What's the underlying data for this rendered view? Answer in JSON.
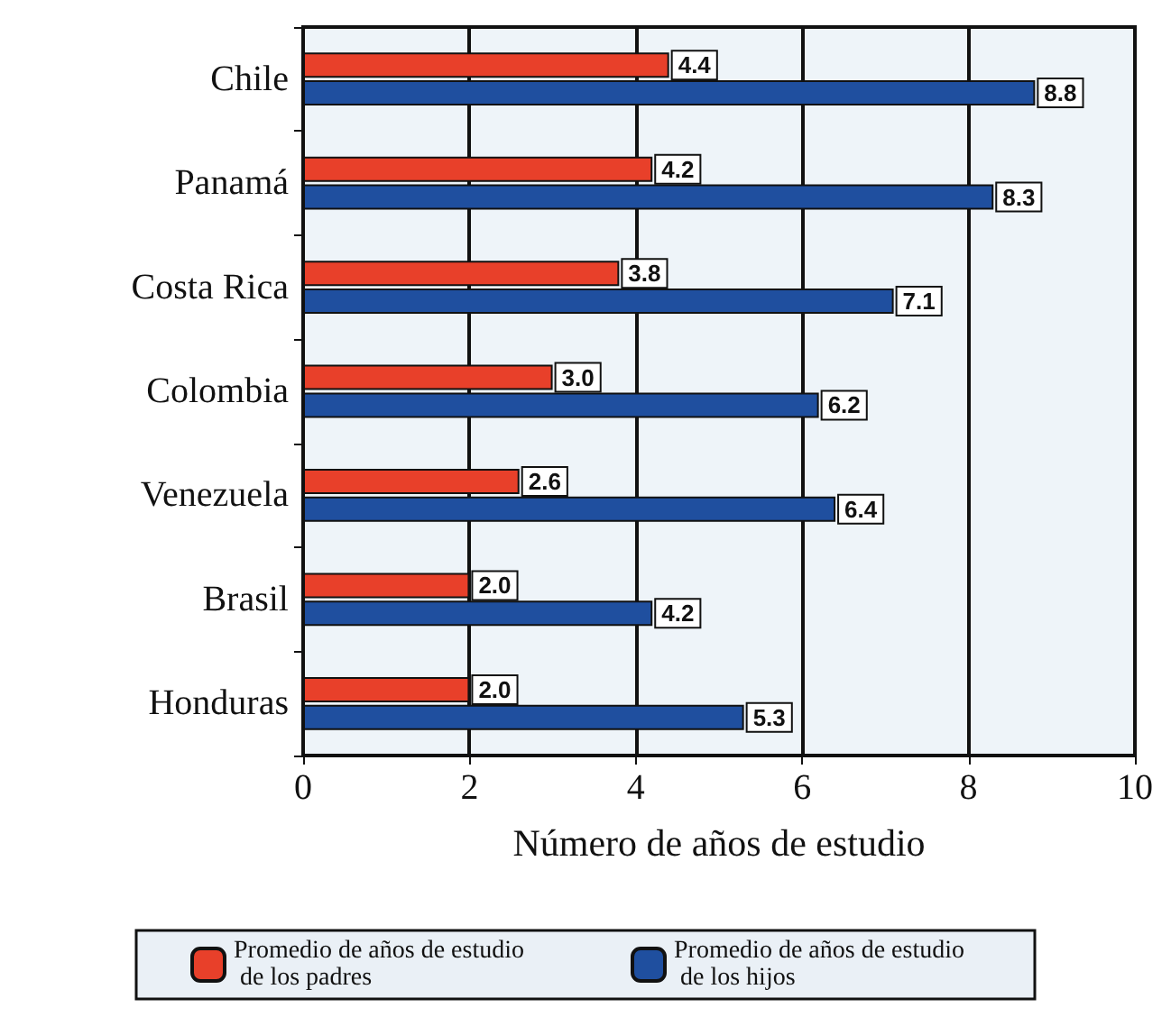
{
  "chart_data": {
    "type": "bar",
    "orientation": "horizontal",
    "xlabel": "Número de años de estudio",
    "categories": [
      "Chile",
      "Panamá",
      "Costa Rica",
      "Colombia",
      "Venezuela",
      "Brasil",
      "Honduras"
    ],
    "series": [
      {
        "name": "Promedio de años de estudio de los padres",
        "color": "#e8402a",
        "values": [
          4.4,
          4.2,
          3.8,
          3.0,
          2.6,
          2.0,
          2.0
        ],
        "value_labels": [
          "4.4",
          "4.2",
          "3.8",
          "3.0",
          "2.6",
          "2.0",
          "2.0"
        ]
      },
      {
        "name": "Promedio de años de estudio de los hijos",
        "color": "#1f4f9f",
        "values": [
          8.8,
          8.3,
          7.1,
          6.2,
          6.4,
          4.2,
          5.3
        ],
        "value_labels": [
          "8.8",
          "8.3",
          "7.1",
          "6.2",
          "6.4",
          "4.2",
          "5.3"
        ]
      }
    ],
    "xlim": [
      0,
      10
    ],
    "xticks": [
      0,
      2,
      4,
      6,
      8,
      10
    ],
    "grid": "x",
    "legend": "bottom"
  }
}
